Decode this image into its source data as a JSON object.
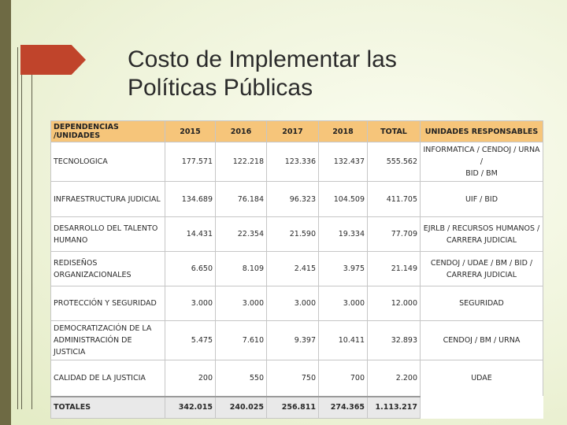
{
  "slide": {
    "title_line1": "Costo de Implementar las",
    "title_line2": "Políticas Públicas",
    "accent_color": "#c0442b",
    "sidebar_color": "#6e6a44",
    "header_fill": "#f6c57a"
  },
  "table": {
    "headers": [
      "DEPENDENCIAS /UNIDADES",
      "2015",
      "2016",
      "2017",
      "2018",
      "TOTAL",
      "UNIDADES RESPONSABLES"
    ],
    "rows": [
      {
        "dep": [
          "TECNOLOGICA"
        ],
        "y2015": "177.571",
        "y2016": "122.218",
        "y2017": "123.336",
        "y2018": "132.437",
        "total": "555.562",
        "resp": [
          "INFORMATICA / CENDOJ / URNA /",
          "BID / BM"
        ]
      },
      {
        "dep": [
          "INFRAESTRUCTURA JUDICIAL"
        ],
        "y2015": "134.689",
        "y2016": "76.184",
        "y2017": "96.323",
        "y2018": "104.509",
        "total": "411.705",
        "resp": [
          "UIF / BID"
        ]
      },
      {
        "dep": [
          "DESARROLLO DEL TALENTO",
          "HUMANO"
        ],
        "y2015": "14.431",
        "y2016": "22.354",
        "y2017": "21.590",
        "y2018": "19.334",
        "total": "77.709",
        "resp": [
          "EJRLB / RECURSOS HUMANOS /",
          "CARRERA JUDICIAL"
        ]
      },
      {
        "dep": [
          "REDISEÑOS ORGANIZACIONALES"
        ],
        "y2015": "6.650",
        "y2016": "8.109",
        "y2017": "2.415",
        "y2018": "3.975",
        "total": "21.149",
        "resp": [
          "CENDOJ / UDAE / BM / BID /",
          "CARRERA JUDICIAL"
        ]
      },
      {
        "dep": [
          "PROTECCIÓN Y SEGURIDAD"
        ],
        "y2015": "3.000",
        "y2016": "3.000",
        "y2017": "3.000",
        "y2018": "3.000",
        "total": "12.000",
        "resp": [
          "SEGURIDAD"
        ]
      },
      {
        "dep": [
          "DEMOCRATIZACIÓN DE LA",
          "ADMINISTRACIÓN DE JUSTICIA"
        ],
        "y2015": "5.475",
        "y2016": "7.610",
        "y2017": "9.397",
        "y2018": "10.411",
        "total": "32.893",
        "resp": [
          "CENDOJ / BM / URNA"
        ]
      },
      {
        "dep": [
          "CALIDAD DE LA JUSTICIA"
        ],
        "y2015": "200",
        "y2016": "550",
        "y2017": "750",
        "y2018": "700",
        "total": "2.200",
        "resp": [
          "UDAE"
        ]
      }
    ],
    "totals": {
      "label": "TOTALES",
      "y2015": "342.015",
      "y2016": "240.025",
      "y2017": "256.811",
      "y2018": "274.365",
      "total": "1.113.217"
    }
  }
}
